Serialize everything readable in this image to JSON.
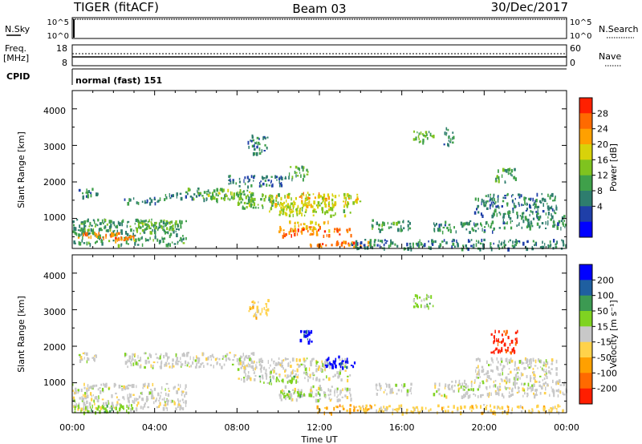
{
  "header": {
    "station": "TIGER (fitACF)",
    "beam": "Beam 03",
    "date": "30/Dec/2017"
  },
  "top_panels": {
    "nsky": {
      "label": "N.Sky",
      "ticks_left": [
        "10^5",
        "10^0"
      ],
      "ticks_right": [
        "10^5",
        "10^0"
      ],
      "right_label": "N.Search"
    },
    "freq": {
      "label_line1": "Freq.",
      "label_line2": "[MHz]",
      "ticks_left": [
        "18",
        "8"
      ],
      "ticks_right": [
        "60",
        "0"
      ],
      "right_label": "Nave"
    },
    "cpid": {
      "label": "CPID",
      "mode_text": "normal (fast) 151"
    }
  },
  "x_axis": {
    "label": "Time UT",
    "ticks": [
      "00:00",
      "04:00",
      "08:00",
      "12:00",
      "16:00",
      "20:00",
      "00:00"
    ]
  },
  "chart_data": [
    {
      "type": "heatmap",
      "name": "power",
      "ylabel": "Slant Range [km]",
      "yticks": [
        "1000",
        "2000",
        "3000",
        "4000"
      ],
      "ylim": [
        180,
        4500
      ],
      "xlim": [
        0,
        24
      ],
      "colorbar": {
        "label": "Power [dB]",
        "ticks": [
          "4",
          "8",
          "12",
          "16",
          "20",
          "24",
          "28"
        ],
        "range": [
          0,
          30
        ],
        "colors": [
          "#0000ff",
          "#1f3fa8",
          "#2e7d6e",
          "#3fa04a",
          "#7fc31f",
          "#d8d20a",
          "#ffa000",
          "#ff6a00",
          "#ff2000"
        ]
      },
      "regions": [
        {
          "t0": 0.0,
          "t1": 5.5,
          "r0": 300,
          "r1": 1000,
          "v": 10
        },
        {
          "t0": 0.2,
          "t1": 2.5,
          "r0": 450,
          "r1": 650,
          "v": 25
        },
        {
          "t0": 2.0,
          "t1": 3.0,
          "r0": 420,
          "r1": 560,
          "v": 24
        },
        {
          "t0": 3.0,
          "t1": 5.0,
          "r0": 700,
          "r1": 1000,
          "v": 13
        },
        {
          "t0": 0.3,
          "t1": 1.2,
          "r0": 1600,
          "r1": 1850,
          "v": 8
        },
        {
          "t0": 2.5,
          "t1": 4.5,
          "r0": 1450,
          "r1": 1600,
          "v": 8
        },
        {
          "t0": 4.5,
          "t1": 6.5,
          "r0": 1550,
          "r1": 1750,
          "v": 8
        },
        {
          "t0": 5.5,
          "t1": 7.5,
          "r0": 1550,
          "r1": 1850,
          "v": 10
        },
        {
          "t0": 6.5,
          "t1": 8.8,
          "r0": 1500,
          "r1": 1850,
          "v": 14
        },
        {
          "t0": 8.0,
          "t1": 10.0,
          "r0": 1300,
          "r1": 1700,
          "v": 13
        },
        {
          "t0": 9.5,
          "t1": 11.5,
          "r0": 1200,
          "r1": 1700,
          "v": 18
        },
        {
          "t0": 10.8,
          "t1": 12.3,
          "r0": 1550,
          "r1": 1750,
          "v": 22
        },
        {
          "t0": 10.0,
          "t1": 13.5,
          "r0": 1100,
          "r1": 1500,
          "v": 17
        },
        {
          "t0": 12.0,
          "t1": 14.0,
          "r0": 1450,
          "r1": 1700,
          "v": 19
        },
        {
          "t0": 10.5,
          "t1": 12.5,
          "r0": 700,
          "r1": 950,
          "v": 20
        },
        {
          "t0": 10.0,
          "t1": 13.5,
          "r0": 550,
          "r1": 800,
          "v": 26
        },
        {
          "t0": 11.5,
          "t1": 14.5,
          "r0": 250,
          "r1": 420,
          "v": 25
        },
        {
          "t0": 13.5,
          "t1": 24.0,
          "r0": 200,
          "r1": 450,
          "v": 8
        },
        {
          "t0": 14.5,
          "t1": 16.5,
          "r0": 700,
          "r1": 1000,
          "v": 10
        },
        {
          "t0": 17.5,
          "t1": 20.5,
          "r0": 650,
          "r1": 950,
          "v": 9
        },
        {
          "t0": 20.5,
          "t1": 24.0,
          "r0": 750,
          "r1": 1100,
          "v": 9
        },
        {
          "t0": 19.5,
          "t1": 23.5,
          "r0": 1100,
          "r1": 1700,
          "v": 8
        },
        {
          "t0": 8.5,
          "t1": 9.5,
          "r0": 2800,
          "r1": 3300,
          "v": 8
        },
        {
          "t0": 7.5,
          "t1": 10.5,
          "r0": 1900,
          "r1": 2200,
          "v": 7
        },
        {
          "t0": 10.5,
          "t1": 11.5,
          "r0": 2100,
          "r1": 2450,
          "v": 12
        },
        {
          "t0": 20.5,
          "t1": 21.5,
          "r0": 2000,
          "r1": 2400,
          "v": 11
        },
        {
          "t0": 16.5,
          "t1": 17.5,
          "r0": 3100,
          "r1": 3450,
          "v": 12
        },
        {
          "t0": 18.0,
          "t1": 18.5,
          "r0": 3000,
          "r1": 3500,
          "v": 8
        }
      ]
    },
    {
      "type": "heatmap",
      "name": "velocity",
      "ylabel": "Slant Range [km]",
      "yticks": [
        "1000",
        "2000",
        "3000",
        "4000"
      ],
      "ylim": [
        180,
        4500
      ],
      "xlim": [
        0,
        24
      ],
      "colorbar": {
        "label": "Velocity [m s⁻¹]",
        "ticks": [
          "200",
          "100",
          "50",
          "15",
          "-15",
          "-50",
          "-100",
          "-200"
        ],
        "colors": [
          "#0000ff",
          "#1f5fa0",
          "#3c9a52",
          "#7fd321",
          "#c8c8c8",
          "#ffd24a",
          "#ffa000",
          "#ff6a00",
          "#ff1e00"
        ]
      },
      "regions": [
        {
          "t0": 0.0,
          "t1": 5.5,
          "r0": 300,
          "r1": 1000,
          "c": 4
        },
        {
          "t0": 0.0,
          "t1": 3.0,
          "r0": 200,
          "r1": 420,
          "c": 3
        },
        {
          "t0": 0.3,
          "t1": 1.2,
          "r0": 1600,
          "r1": 1850,
          "c": 4
        },
        {
          "t0": 2.5,
          "t1": 8.8,
          "r0": 1450,
          "r1": 1850,
          "c": 4
        },
        {
          "t0": 8.0,
          "t1": 13.5,
          "r0": 1100,
          "r1": 1700,
          "c": 4
        },
        {
          "t0": 10.0,
          "t1": 13.5,
          "r0": 550,
          "r1": 950,
          "c": 4
        },
        {
          "t0": 10.2,
          "t1": 12.0,
          "r0": 650,
          "r1": 800,
          "c": 3
        },
        {
          "t0": 12.2,
          "t1": 13.7,
          "r0": 1450,
          "r1": 1750,
          "c": 0
        },
        {
          "t0": 11.0,
          "t1": 11.6,
          "r0": 2150,
          "r1": 2450,
          "c": 0
        },
        {
          "t0": 11.8,
          "t1": 14.5,
          "r0": 200,
          "r1": 420,
          "c": 6
        },
        {
          "t0": 14.0,
          "t1": 24.0,
          "r0": 200,
          "r1": 420,
          "c": 5
        },
        {
          "t0": 14.5,
          "t1": 16.5,
          "r0": 700,
          "r1": 1000,
          "c": 4
        },
        {
          "t0": 17.5,
          "t1": 24.0,
          "r0": 650,
          "r1": 1100,
          "c": 4
        },
        {
          "t0": 19.5,
          "t1": 23.5,
          "r0": 1100,
          "r1": 1700,
          "c": 4
        },
        {
          "t0": 20.3,
          "t1": 21.6,
          "r0": 1850,
          "r1": 2450,
          "c": 8
        },
        {
          "t0": 8.5,
          "t1": 9.5,
          "r0": 2800,
          "r1": 3300,
          "c": 5
        },
        {
          "t0": 16.5,
          "t1": 17.5,
          "r0": 3100,
          "r1": 3450,
          "c": 3
        },
        {
          "t0": 9.0,
          "t1": 11.0,
          "r0": 1000,
          "r1": 1200,
          "c": 3
        }
      ]
    }
  ]
}
